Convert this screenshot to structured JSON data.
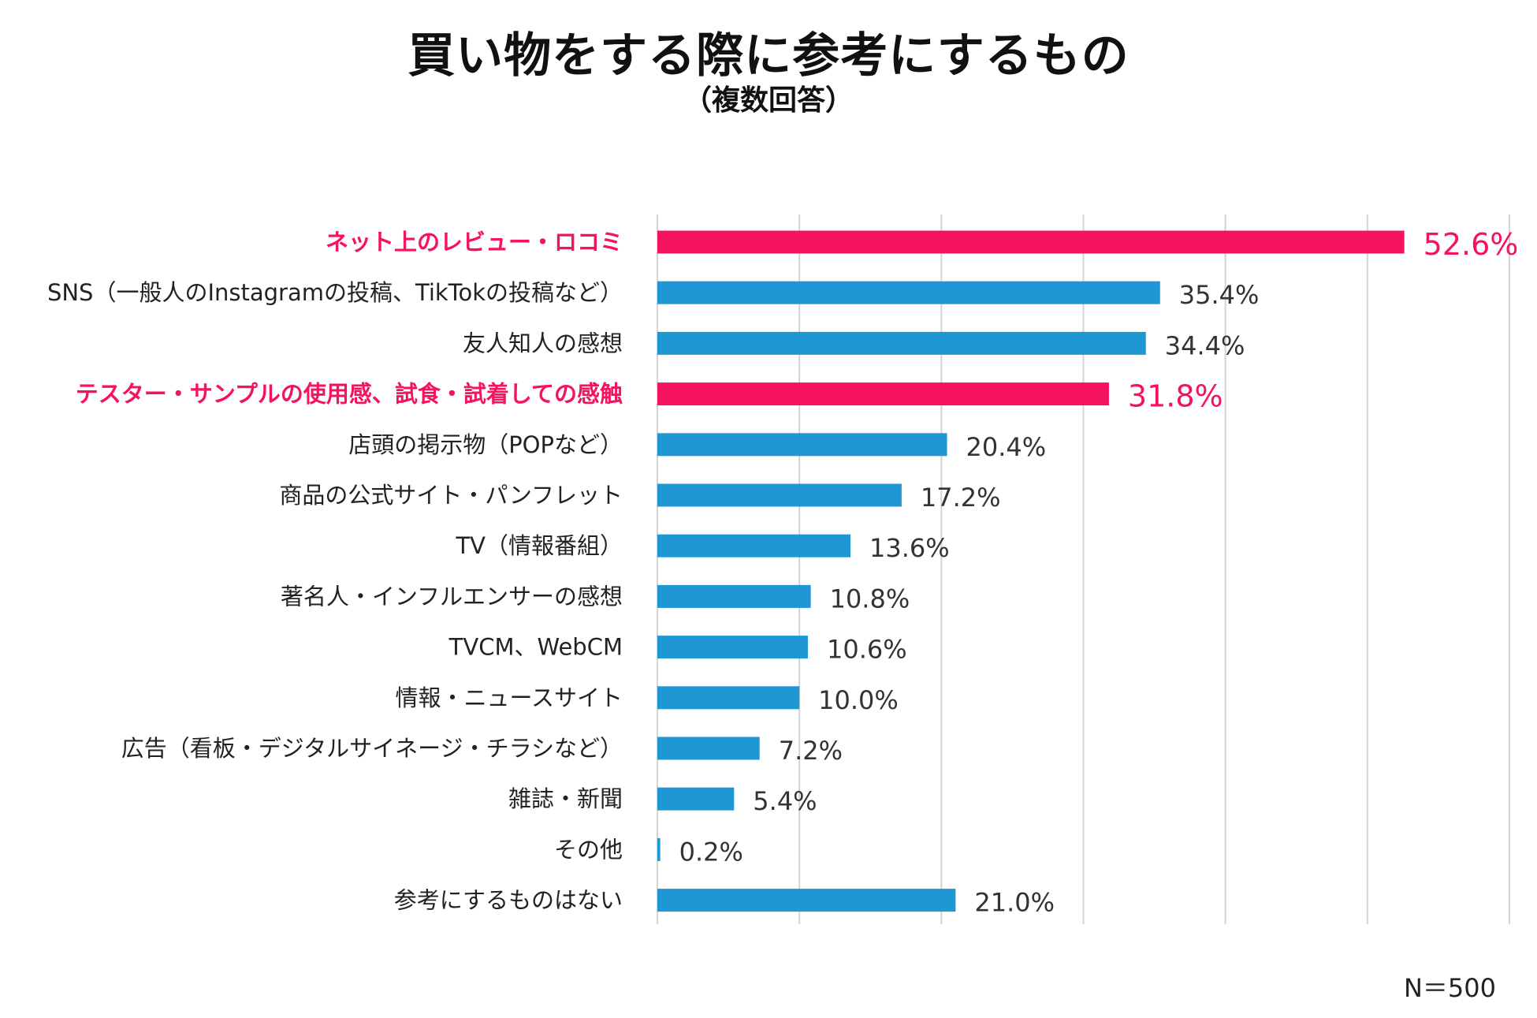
{
  "chart_data": {
    "type": "bar",
    "orientation": "horizontal",
    "title": "買い物をする際に参考にするもの",
    "subtitle": "（複数回答）",
    "note": "N＝500",
    "unit": "%",
    "xlim": [
      0,
      60
    ],
    "gridlines": [
      0,
      10,
      20,
      30,
      40,
      50,
      60
    ],
    "grid": true,
    "categories": [
      "ネット上のレビュー・ロコミ",
      "SNS（一般人のInstagramの投稿、TikTokの投稿など）",
      "友人知人の感想",
      "テスター・サンプルの使用感、試食・試着しての感触",
      "店頭の掲示物（POPなど）",
      "商品の公式サイト・パンフレット",
      "TV（情報番組）",
      "著名人・インフルエンサーの感想",
      "TVCM、WebCM",
      "情報・ニュースサイト",
      "広告（看板・デジタルサイネージ・チラシなど）",
      "雑誌・新聞",
      "その他",
      "参考にするものはない"
    ],
    "values": [
      52.6,
      35.4,
      34.4,
      31.8,
      20.4,
      17.2,
      13.6,
      10.8,
      10.6,
      10.0,
      7.2,
      5.4,
      0.2,
      21.0
    ],
    "value_labels": [
      "52.6%",
      "35.4%",
      "34.4%",
      "31.8%",
      "20.4%",
      "17.2%",
      "13.6%",
      "10.8%",
      "10.6%",
      "10.0%",
      "7.2%",
      "5.4%",
      "0.2%",
      "21.0%"
    ],
    "highlighted": [
      true,
      false,
      false,
      true,
      false,
      false,
      false,
      false,
      false,
      false,
      false,
      false,
      false,
      false
    ],
    "colors": {
      "normal": "#1f97d4",
      "highlight": "#f5135f",
      "grid": "#d4d4d4",
      "text": "#222222"
    }
  }
}
